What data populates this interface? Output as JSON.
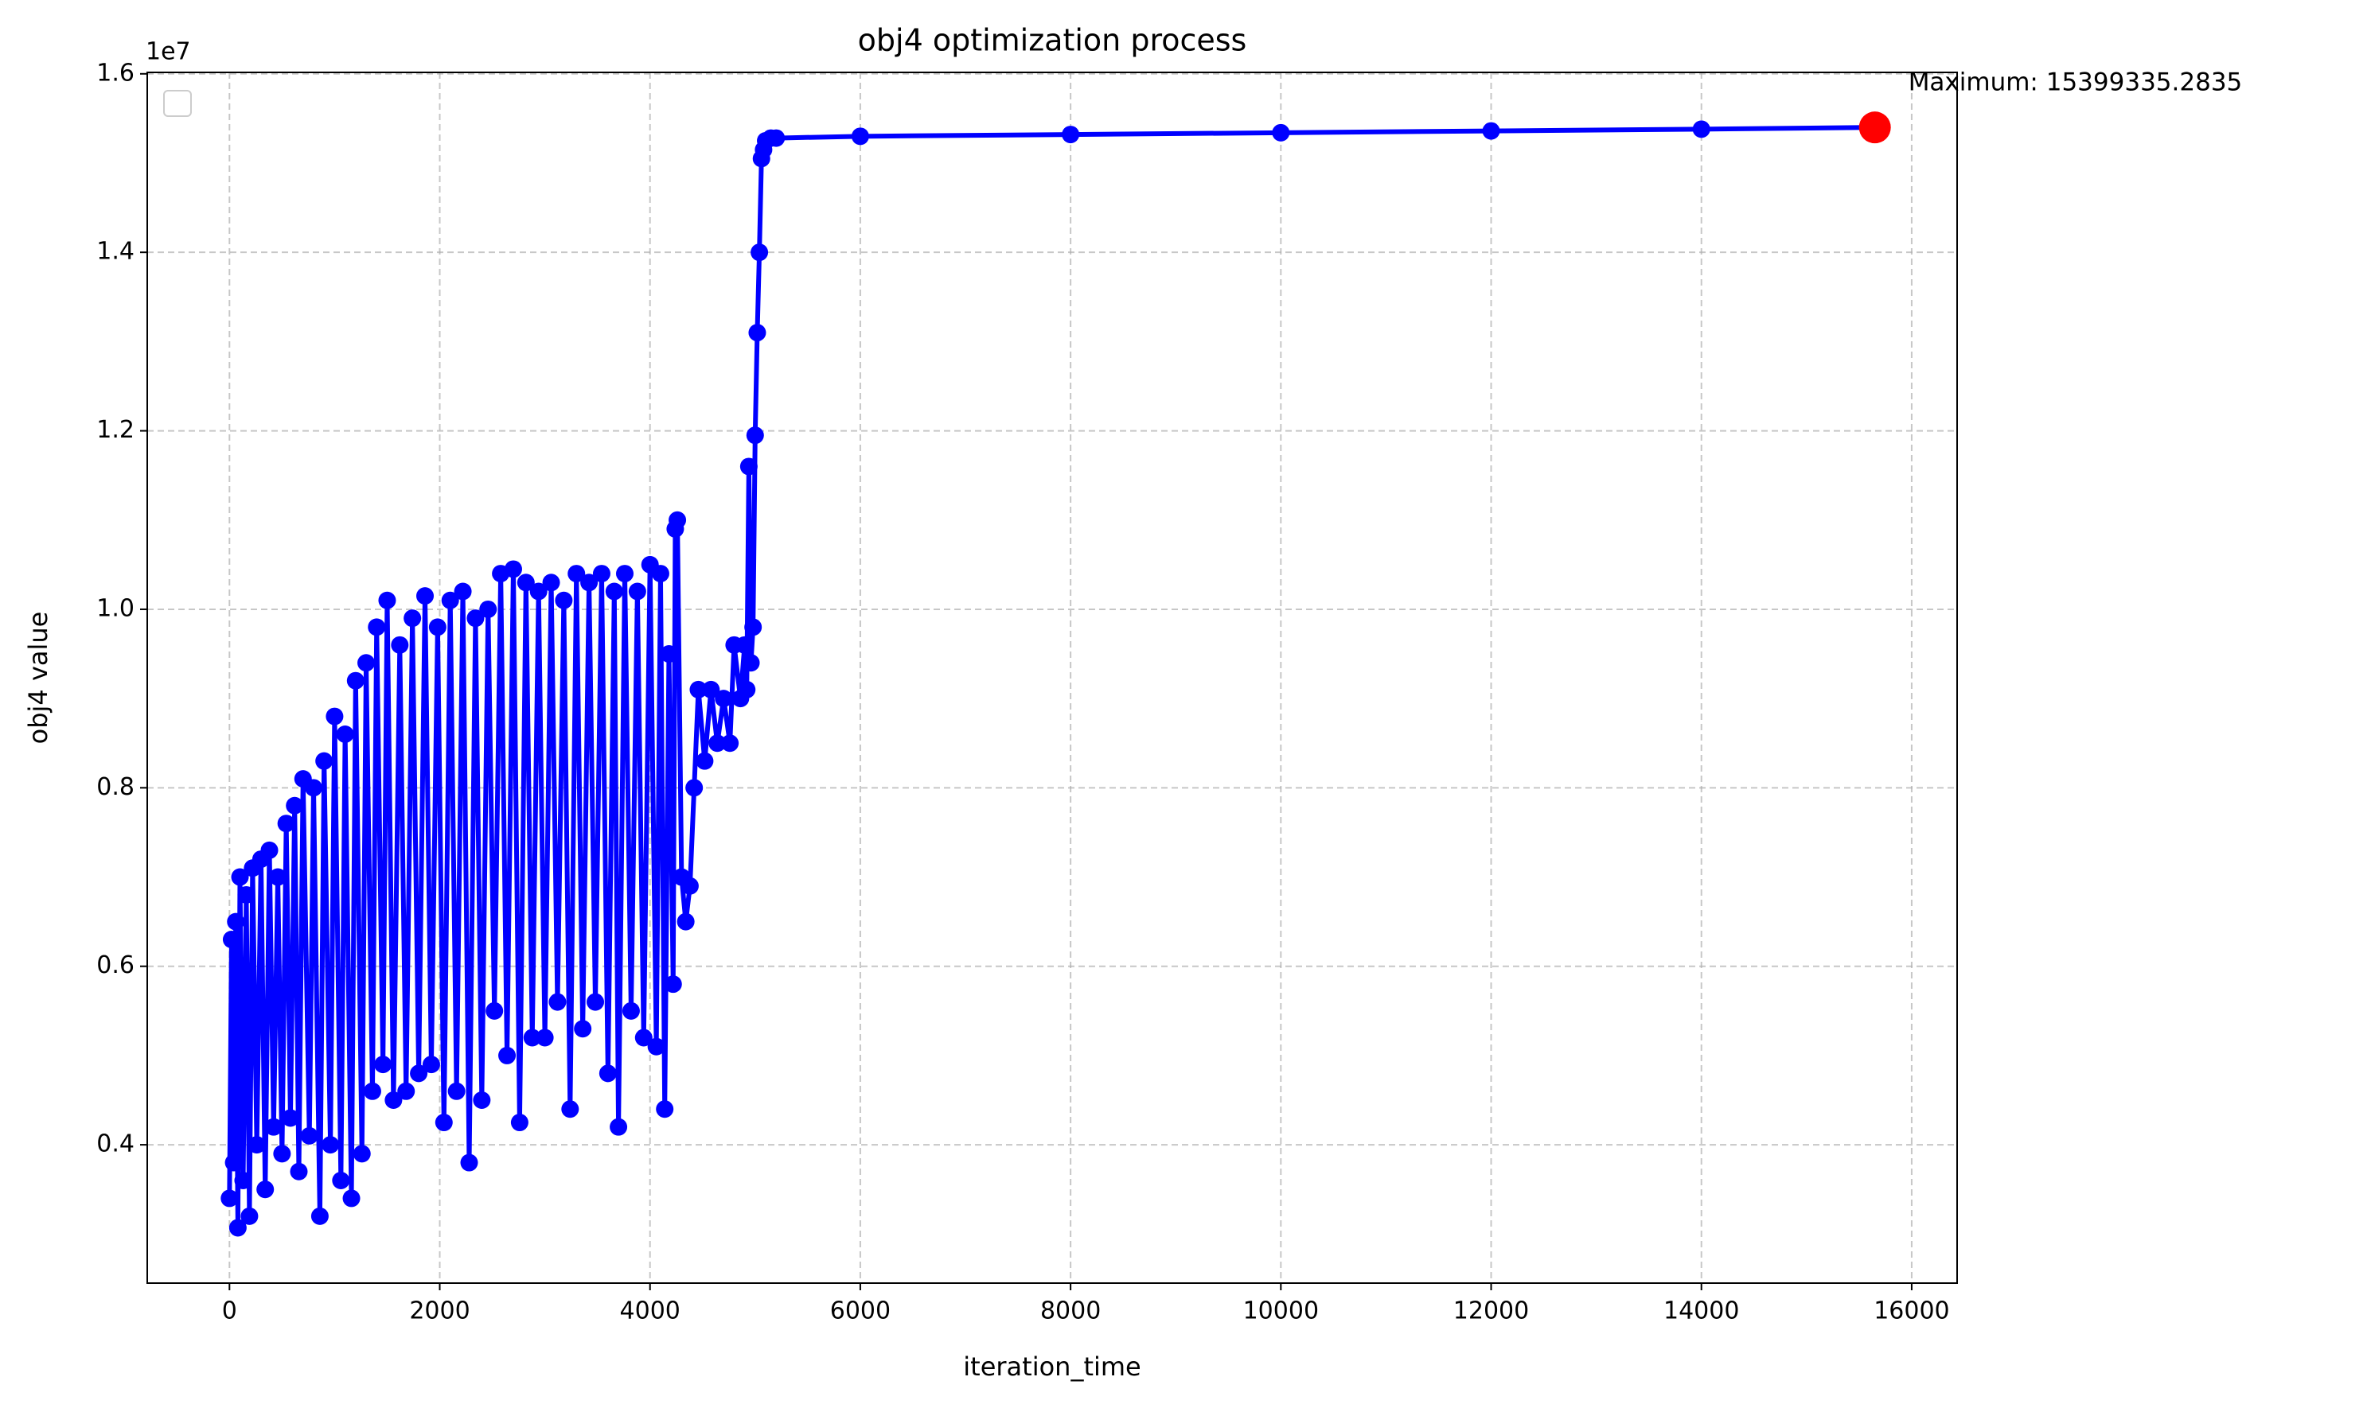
{
  "chart_data": {
    "type": "line",
    "title": "obj4 optimization process",
    "x_label": "iteration_time",
    "y_label": "obj4 value",
    "y_offset_label": "1e7",
    "annotation": "Maximum: 15399335.2835",
    "highlight_color": "#ff0000",
    "grid": true,
    "x": [
      0,
      20,
      40,
      60,
      80,
      100,
      130,
      160,
      190,
      220,
      260,
      300,
      340,
      380,
      420,
      460,
      500,
      540,
      580,
      620,
      660,
      700,
      760,
      800,
      860,
      900,
      960,
      1000,
      1060,
      1100,
      1160,
      1200,
      1260,
      1300,
      1360,
      1400,
      1460,
      1500,
      1560,
      1620,
      1680,
      1740,
      1800,
      1860,
      1920,
      1980,
      2040,
      2100,
      2160,
      2220,
      2280,
      2340,
      2400,
      2460,
      2520,
      2580,
      2640,
      2700,
      2760,
      2820,
      2880,
      2940,
      3000,
      3060,
      3120,
      3180,
      3240,
      3300,
      3360,
      3420,
      3480,
      3540,
      3600,
      3660,
      3700,
      3760,
      3820,
      3880,
      3940,
      4000,
      4060,
      4100,
      4140,
      4180,
      4220,
      4240,
      4260,
      4300,
      4340,
      4380,
      4420,
      4460,
      4520,
      4580,
      4640,
      4700,
      4760,
      4800,
      4860,
      4900,
      4920,
      4940,
      4960,
      4980,
      5000,
      5020,
      5040,
      5060,
      5080,
      5100,
      5150,
      5200,
      6000,
      8000,
      10000,
      12000,
      14000,
      15650
    ],
    "series": [
      {
        "color": "#0000ff",
        "values": [
          3400000,
          6300000,
          3800000,
          6500000,
          3070000,
          7000000,
          3600000,
          6800000,
          3200000,
          7100000,
          4000000,
          7200000,
          3500000,
          7300000,
          4200000,
          7000000,
          3900000,
          7600000,
          4300000,
          7800000,
          3700000,
          8100000,
          4100000,
          8000000,
          3200000,
          8300000,
          4000000,
          8800000,
          3600000,
          8600000,
          3400000,
          9200000,
          3900000,
          9400000,
          4600000,
          9800000,
          4900000,
          10100000,
          4500000,
          9600000,
          4600000,
          9900000,
          4800000,
          10150000,
          4900000,
          9800000,
          4250000,
          10100000,
          4600000,
          10200000,
          3800000,
          9900000,
          4500000,
          10000000,
          5500000,
          10400000,
          5000000,
          10450000,
          4250000,
          10300000,
          5200000,
          10200000,
          5200000,
          10300000,
          5600000,
          10100000,
          4400000,
          10400000,
          5300000,
          10300000,
          5600000,
          10400000,
          4800000,
          10200000,
          4200000,
          10400000,
          5500000,
          10200000,
          5200000,
          10500000,
          5100000,
          10400000,
          4400000,
          9500000,
          5800000,
          10900000,
          11000000,
          7000000,
          6500000,
          6900000,
          8000000,
          9100000,
          8300000,
          9100000,
          8500000,
          9000000,
          8500000,
          9600000,
          9000000,
          9600000,
          9100000,
          11600000,
          9400000,
          9800000,
          11950000,
          13100000,
          14000000,
          15050000,
          15150000,
          15250000,
          15280000,
          15280000,
          15300000,
          15320000,
          15340000,
          15360000,
          15380000,
          15399335.2835
        ]
      }
    ],
    "xlim": [
      -782,
      16432
    ],
    "ylim": [
      2450000,
      16016000
    ],
    "xticks": [
      0,
      2000,
      4000,
      6000,
      8000,
      10000,
      12000,
      14000,
      16000
    ],
    "yticks": [
      {
        "value": 4000000,
        "label": "0.4"
      },
      {
        "value": 6000000,
        "label": "0.6"
      },
      {
        "value": 8000000,
        "label": "0.8"
      },
      {
        "value": 10000000,
        "label": "1.0"
      },
      {
        "value": 12000000,
        "label": "1.2"
      },
      {
        "value": 14000000,
        "label": "1.4"
      },
      {
        "value": 16000000,
        "label": "1.6"
      }
    ]
  }
}
